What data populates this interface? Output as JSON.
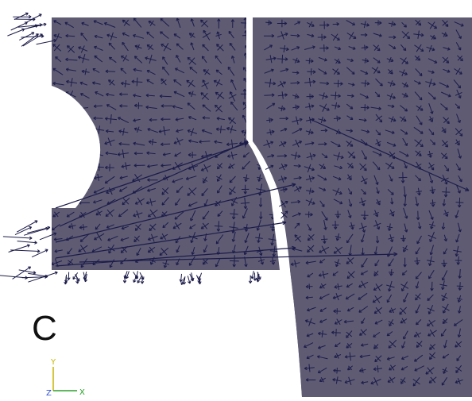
{
  "figure": {
    "panel_label": "C",
    "mesh_fill_color": "#5e5b73",
    "vector_color": "#1c1c4a",
    "background_color": "#ffffff",
    "description_kind": "vector-field-on-mesh"
  },
  "axis_triad": {
    "y_label": "Y",
    "z_label": "Z",
    "x_label": "X",
    "y_color": "#c8b400",
    "x_color": "#2aa02a",
    "z_color": "#3050d0"
  }
}
